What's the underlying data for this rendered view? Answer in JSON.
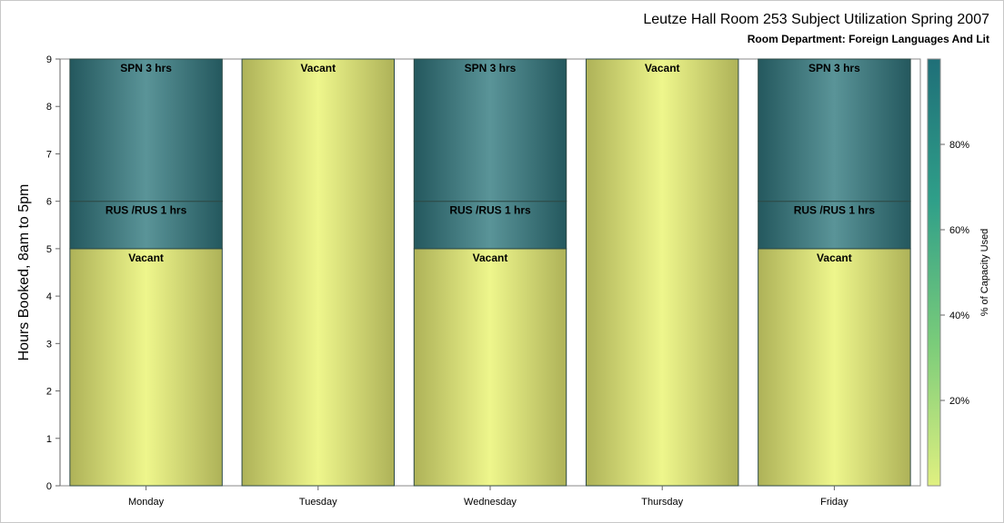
{
  "chart_data": {
    "type": "bar",
    "title": "Leutze Hall Room 253 Subject Utilization Spring 2007",
    "subtitle": "Room Department:  Foreign Languages And Lit",
    "ylabel": "Hours Booked, 8am to 5pm",
    "xlabel": "",
    "ylim": [
      0,
      9
    ],
    "yticks": [
      "0",
      "1",
      "2",
      "3",
      "4",
      "5",
      "6",
      "7",
      "8",
      "9"
    ],
    "categories": [
      "Monday",
      "Tuesday",
      "Wednesday",
      "Thursday",
      "Friday"
    ],
    "bars": [
      {
        "day": "Monday",
        "segments": [
          {
            "label": "Vacant",
            "value": 5,
            "status": "vacant"
          },
          {
            "label": "RUS /RUS 1 hrs",
            "value": 1,
            "status": "booked"
          },
          {
            "label": "SPN 3 hrs",
            "value": 3,
            "status": "booked"
          }
        ]
      },
      {
        "day": "Tuesday",
        "segments": [
          {
            "label": "Vacant",
            "value": 9,
            "status": "vacant"
          }
        ]
      },
      {
        "day": "Wednesday",
        "segments": [
          {
            "label": "Vacant",
            "value": 5,
            "status": "vacant"
          },
          {
            "label": "RUS /RUS 1 hrs",
            "value": 1,
            "status": "booked"
          },
          {
            "label": "SPN 3 hrs",
            "value": 3,
            "status": "booked"
          }
        ]
      },
      {
        "day": "Thursday",
        "segments": [
          {
            "label": "Vacant",
            "value": 9,
            "status": "vacant"
          }
        ]
      },
      {
        "day": "Friday",
        "segments": [
          {
            "label": "Vacant",
            "value": 5,
            "status": "vacant"
          },
          {
            "label": "RUS /RUS 1 hrs",
            "value": 1,
            "status": "booked"
          },
          {
            "label": "SPN 3 hrs",
            "value": 3,
            "status": "booked"
          }
        ]
      }
    ],
    "colorbar": {
      "label": "% of Capacity Used",
      "ticks": [
        {
          "label": "20%",
          "value": 20
        },
        {
          "label": "40%",
          "value": 40
        },
        {
          "label": "60%",
          "value": 60
        },
        {
          "label": "80%",
          "value": 80
        }
      ],
      "range": [
        0,
        100
      ],
      "colors": [
        "#e0f080",
        "#7acc7a",
        "#2f9f89",
        "#1f6f78"
      ]
    },
    "colors": {
      "vacant_light": "#eef68c",
      "vacant_dark": "#aeb258",
      "booked_light": "#5a9498",
      "booked_dark": "#24585e",
      "segment_border": "#2e4a46"
    }
  }
}
